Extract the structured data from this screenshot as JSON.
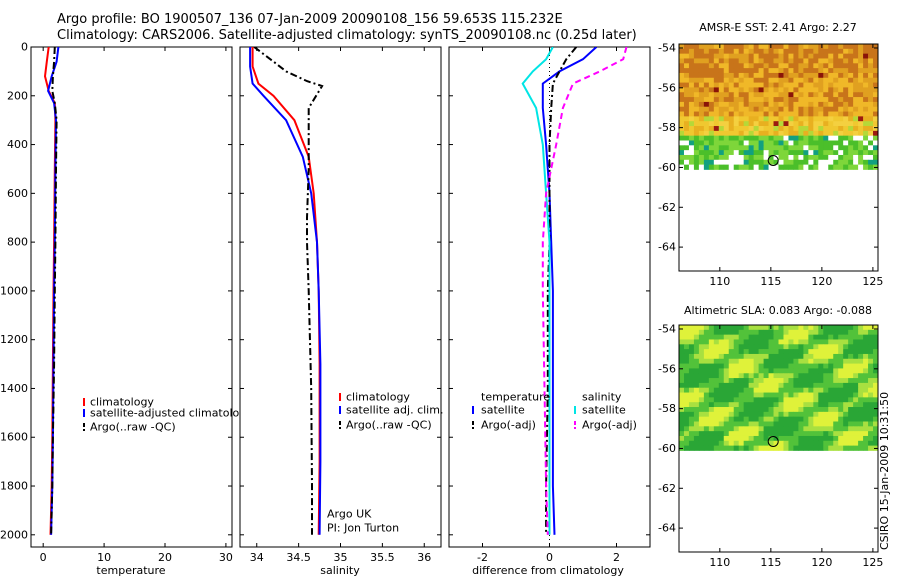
{
  "header": {
    "line1": "Argo profile: BO 1900507_136 07-Jan-2009 20090108_156 59.653S 115.232E",
    "line2": "Climatology: CARS2006. Satellite-adjusted climatology: synTS_20090108.nc (0.25d later)"
  },
  "footer": {
    "stamp": "CSIRO 15-Jan-2009 10:31:50"
  },
  "colors": {
    "climatology": "#ff0000",
    "satellite": "#0000ff",
    "argo": "#000000",
    "sal_satellite": "#00e5e5",
    "sal_argo": "#ff00ff"
  },
  "chart_data": [
    {
      "type": "line",
      "xlabel": "temperature",
      "ylabel": "",
      "xlim": [
        -2,
        31
      ],
      "ylim": [
        2050,
        0
      ],
      "xticks": [
        0,
        10,
        20,
        30
      ],
      "yticks": [
        0,
        200,
        400,
        600,
        800,
        1000,
        1200,
        1400,
        1600,
        1800,
        2000
      ],
      "legend": [
        "climatology",
        "satellite-adjusted climatology",
        "Argo(..raw -QC)"
      ],
      "legend_position": "lower-right",
      "series": [
        {
          "name": "climatology",
          "color": "#ff0000",
          "style": "solid",
          "x": [
            0.9,
            0.6,
            0.3,
            0.9,
            1.9,
            2.0,
            1.9,
            1.8,
            1.7,
            1.6,
            1.5,
            1.4,
            1.2
          ],
          "y": [
            0,
            60,
            120,
            180,
            230,
            300,
            500,
            800,
            1000,
            1300,
            1600,
            1800,
            2000
          ]
        },
        {
          "name": "satellite-adjusted climatology",
          "color": "#0000ff",
          "style": "solid",
          "x": [
            2.5,
            2.2,
            1.4,
            0.8,
            1.8,
            2.1,
            2.0,
            1.9,
            1.8,
            1.7,
            1.6,
            1.5,
            1.3
          ],
          "y": [
            0,
            60,
            120,
            180,
            230,
            300,
            500,
            800,
            1000,
            1300,
            1600,
            1800,
            2000
          ]
        },
        {
          "name": "Argo(..raw -QC)",
          "color": "#000000",
          "style": "dashdot",
          "x": [
            1.9,
            1.8,
            1.6,
            1.5,
            1.9,
            2.2,
            2.1,
            2.0,
            1.9,
            1.8,
            1.6,
            1.5,
            1.3
          ],
          "y": [
            0,
            60,
            120,
            180,
            230,
            300,
            500,
            800,
            1000,
            1300,
            1600,
            1800,
            2000
          ]
        }
      ]
    },
    {
      "type": "line",
      "xlabel": "salinity",
      "xlim": [
        33.8,
        36.2
      ],
      "ylim": [
        2050,
        0
      ],
      "xticks": [
        34,
        34.5,
        35,
        35.5,
        36
      ],
      "xtick_labels": [
        "34",
        "34.5",
        "35",
        "35.5",
        "36"
      ],
      "legend": [
        "climatology",
        "satellite adj. clim.",
        "Argo(..raw -QC)"
      ],
      "legend_position": "lower-right",
      "annotation": [
        "Argo UK",
        "PI: Jon Turton"
      ],
      "series": [
        {
          "name": "climatology",
          "color": "#ff0000",
          "style": "solid",
          "x": [
            33.95,
            33.95,
            34.02,
            34.2,
            34.45,
            34.62,
            34.68,
            34.72,
            34.74,
            34.75,
            34.75,
            34.74
          ],
          "y": [
            0,
            80,
            150,
            200,
            300,
            450,
            600,
            800,
            1000,
            1300,
            1700,
            2000
          ]
        },
        {
          "name": "satellite adj. clim.",
          "color": "#0000ff",
          "style": "solid",
          "x": [
            33.92,
            33.92,
            33.95,
            34.08,
            34.35,
            34.55,
            34.65,
            34.72,
            34.74,
            34.76,
            34.76,
            34.75
          ],
          "y": [
            0,
            80,
            150,
            200,
            300,
            450,
            600,
            800,
            1000,
            1300,
            1700,
            2000
          ]
        },
        {
          "name": "Argo(..raw -QC)",
          "color": "#000000",
          "style": "dashdot",
          "x": [
            33.97,
            34.2,
            34.35,
            34.6,
            34.78,
            34.62,
            34.62,
            34.6,
            34.6,
            34.62,
            34.65,
            34.66,
            34.66
          ],
          "y": [
            0,
            60,
            100,
            140,
            160,
            250,
            500,
            700,
            800,
            1000,
            1400,
            1800,
            2000
          ]
        }
      ]
    },
    {
      "type": "line",
      "xlabel": "difference from climatology",
      "xlim": [
        -3,
        3
      ],
      "ylim": [
        2050,
        0
      ],
      "xticks": [
        -2,
        0,
        2
      ],
      "legend": [
        "temperature",
        "satellite",
        "Argo(-adj)",
        "salinity",
        "satellite",
        "Argo(-adj)"
      ],
      "legend_position": "lower-right",
      "series": [
        {
          "name": "temperature satellite",
          "color": "#0000ff",
          "style": "solid",
          "x": [
            1.4,
            1.0,
            0.3,
            -0.2,
            -0.2,
            -0.1,
            0.0,
            0.05,
            0.1,
            0.1,
            0.1,
            0.15
          ],
          "y": [
            0,
            50,
            100,
            150,
            250,
            400,
            600,
            800,
            1000,
            1400,
            1800,
            2000
          ]
        },
        {
          "name": "temperature Argo(-adj)",
          "color": "#000000",
          "style": "dashdot",
          "x": [
            0.8,
            0.5,
            0.3,
            0.1,
            0.05,
            0.0,
            0.0,
            0.0,
            -0.05,
            -0.05,
            -0.1,
            -0.1
          ],
          "y": [
            0,
            50,
            100,
            150,
            250,
            400,
            600,
            800,
            1000,
            1400,
            1800,
            2000
          ]
        },
        {
          "name": "salinity satellite",
          "color": "#00e5e5",
          "style": "solid",
          "x": [
            0.1,
            -0.1,
            -0.5,
            -0.8,
            -0.4,
            -0.2,
            -0.1,
            0.0,
            0.0,
            0.0,
            0.0,
            0.0
          ],
          "y": [
            0,
            50,
            100,
            150,
            250,
            400,
            600,
            800,
            1000,
            1400,
            1800,
            2000
          ]
        },
        {
          "name": "salinity Argo(-adj)",
          "color": "#ff00ff",
          "style": "dashed",
          "x": [
            2.3,
            2.2,
            1.5,
            0.7,
            0.4,
            0.2,
            -0.1,
            -0.2,
            -0.2,
            -0.15,
            -0.1,
            -0.05
          ],
          "y": [
            0,
            50,
            100,
            150,
            250,
            400,
            600,
            800,
            1000,
            1400,
            1800,
            2000
          ]
        }
      ]
    },
    {
      "type": "heatmap",
      "title": "AMSR-E SST: 2.41 Argo: 2.27",
      "xlim": [
        106,
        125.5
      ],
      "ylim": [
        -65.2,
        -53.8
      ],
      "xticks": [
        110,
        115,
        120,
        125
      ],
      "yticks": [
        -54,
        -56,
        -58,
        -60,
        -62,
        -64
      ],
      "data_extent_lat": [
        -60.1,
        -53.8
      ],
      "argo_position": {
        "lon": 115.232,
        "lat": -59.653
      }
    },
    {
      "type": "heatmap",
      "title": "Altimetric SLA: 0.083 Argo: -0.088",
      "xlim": [
        106,
        125.5
      ],
      "ylim": [
        -65.2,
        -53.8
      ],
      "xticks": [
        110,
        115,
        120,
        125
      ],
      "yticks": [
        -54,
        -56,
        -58,
        -60,
        -62,
        -64
      ],
      "data_extent_lat": [
        -60.1,
        -53.8
      ],
      "argo_position": {
        "lon": 115.232,
        "lat": -59.653
      }
    }
  ]
}
